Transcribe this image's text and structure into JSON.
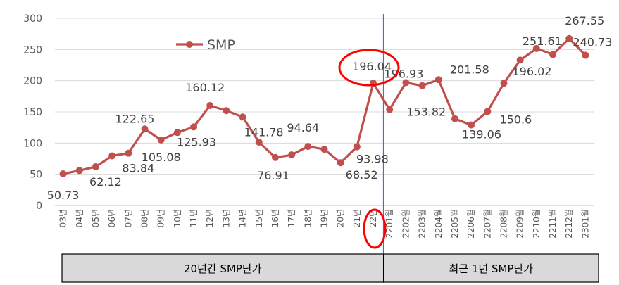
{
  "chart_data": {
    "type": "line",
    "series": [
      {
        "name": "SMP",
        "color": "#c0504d",
        "values": [
          50.73,
          56,
          62.12,
          79.5,
          83.84,
          122.65,
          105.08,
          117,
          125.93,
          160.12,
          152,
          141.78,
          101.5,
          76.91,
          81,
          94.64,
          90,
          68.52,
          93.98,
          196.04,
          153.82,
          196.93,
          192,
          201.58,
          139.06,
          129,
          150.6,
          196.02,
          233,
          251.61,
          242,
          267.55,
          240.73
        ]
      }
    ],
    "categories": [
      "03년",
      "04년",
      "05년",
      "06년",
      "07년",
      "08년",
      "09년",
      "10년",
      "11년",
      "12년",
      "13년",
      "14년",
      "15년",
      "16년",
      "17년",
      "18년",
      "19년",
      "20년",
      "21년",
      "22년",
      "2201월",
      "2202월",
      "2203월",
      "2204월",
      "2205월",
      "2206월",
      "2207월",
      "2208월",
      "2209월",
      "2210월",
      "2211월",
      "2212월",
      "2301월"
    ],
    "data_labels": [
      {
        "index": 0,
        "text": "50.73"
      },
      {
        "index": 2,
        "text": "62.12"
      },
      {
        "index": 4,
        "text": "83.84"
      },
      {
        "index": 5,
        "text": "122.65"
      },
      {
        "index": 6,
        "text": "105.08"
      },
      {
        "index": 8,
        "text": "125.93"
      },
      {
        "index": 9,
        "text": "160.12"
      },
      {
        "index": 11,
        "text": "141.78"
      },
      {
        "index": 13,
        "text": "76.91"
      },
      {
        "index": 15,
        "text": "94.64"
      },
      {
        "index": 17,
        "text": "68.52"
      },
      {
        "index": 18,
        "text": "93.98"
      },
      {
        "index": 19,
        "text": "196.04"
      },
      {
        "index": 20,
        "text": "153.82"
      },
      {
        "index": 21,
        "text": "196.93"
      },
      {
        "index": 23,
        "text": "201.58"
      },
      {
        "index": 24,
        "text": "139.06"
      },
      {
        "index": 26,
        "text": "150.6"
      },
      {
        "index": 27,
        "text": "196.02"
      },
      {
        "index": 29,
        "text": "251.61"
      },
      {
        "index": 31,
        "text": "267.55"
      },
      {
        "index": 32,
        "text": "240.73"
      }
    ],
    "ylim": [
      0,
      300
    ],
    "yticks": [
      "0",
      "50",
      "100",
      "150",
      "200",
      "250",
      "300"
    ],
    "grid": true,
    "legend": "top-left",
    "highlight_color": "#ff0000",
    "divider_color": "#4472c4",
    "period_labels": [
      "20년간 SMP단가",
      "최근 1년 SMP단가"
    ]
  }
}
